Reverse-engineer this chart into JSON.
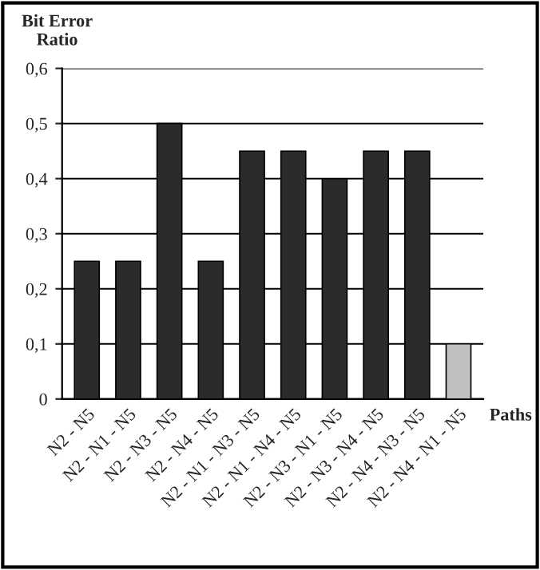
{
  "chart_data": {
    "type": "bar",
    "ylabel": "Bit Error\nRatio",
    "xlabel": "Paths",
    "categories": [
      "N2 - N5",
      "N2 - N1 - N5",
      "N2 - N3 - N5",
      "N2 - N4 - N5",
      "N2 - N1 - N3 - N5",
      "N2 - N1 - N4 - N5",
      "N2 - N3 - N1 - N5",
      "N2 - N3 - N4 - N5",
      "N2 - N4 - N3 - N5",
      "N2 - N4 - N1 - N5"
    ],
    "values": [
      0.25,
      0.25,
      0.5,
      0.25,
      0.45,
      0.45,
      0.4,
      0.45,
      0.45,
      0.1
    ],
    "colors": [
      "#2b2b2b",
      "#2b2b2b",
      "#2b2b2b",
      "#2b2b2b",
      "#2b2b2b",
      "#2b2b2b",
      "#2b2b2b",
      "#2b2b2b",
      "#2b2b2b",
      "#c0c0c0"
    ],
    "ylim": [
      0,
      0.6
    ],
    "yticks": [
      {
        "value": 0,
        "label": "0"
      },
      {
        "value": 0.1,
        "label": "0,1"
      },
      {
        "value": 0.2,
        "label": "0,2"
      },
      {
        "value": 0.3,
        "label": "0,3"
      },
      {
        "value": 0.4,
        "label": "0,4"
      },
      {
        "value": 0.5,
        "label": "0,5"
      },
      {
        "value": 0.6,
        "label": "0,6"
      }
    ],
    "grid": "y",
    "legend": false
  }
}
